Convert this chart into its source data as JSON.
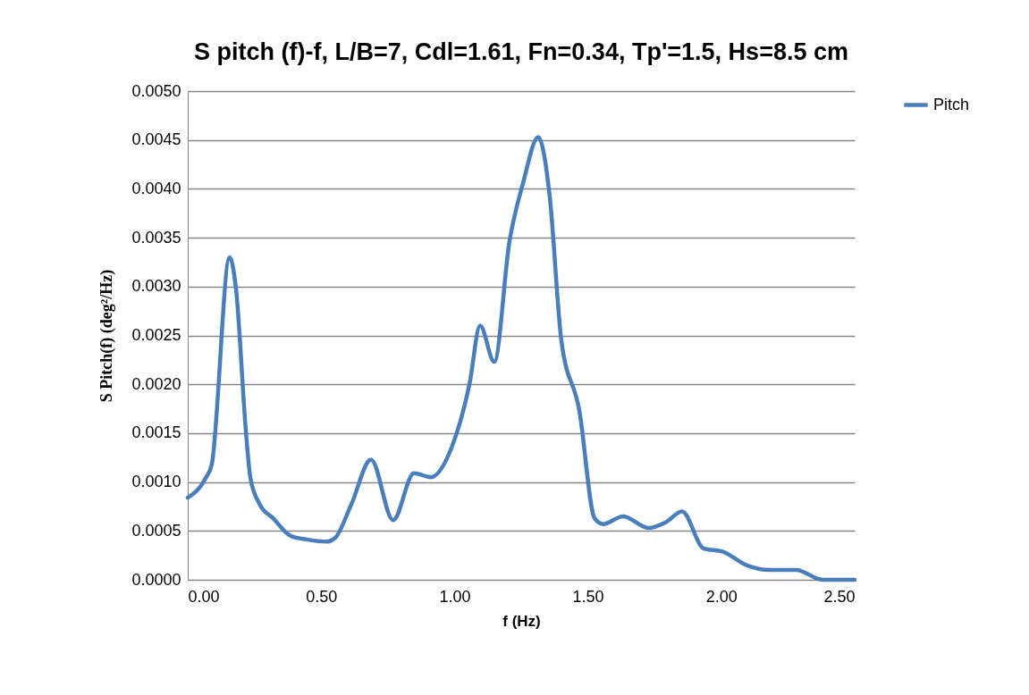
{
  "chart_data": {
    "type": "line",
    "title": "S pitch (f)-f, L/B=7, Cdl=1.61, Fn=0.34, Tp'=1.5, Hs=8.5 cm",
    "xlabel": "f (Hz)",
    "ylabel": "S Pitch(f)  (deg²/Hz)",
    "x": [
      0,
      0.067,
      0.09,
      0.157,
      0.18,
      0.22,
      0.235,
      0.27,
      0.32,
      0.385,
      0.45,
      0.52,
      0.553,
      0.613,
      0.687,
      0.77,
      0.848,
      0.911,
      0.99,
      1.056,
      1.096,
      1.149,
      1.206,
      1.257,
      1.314,
      1.357,
      1.4,
      1.468,
      1.525,
      1.558,
      1.632,
      1.726,
      1.793,
      1.853,
      1.934,
      2.004,
      2.094,
      2.18,
      2.28,
      2.38,
      2.5
    ],
    "series": [
      {
        "name": "Pitch",
        "color": "#4a7ebb",
        "values": [
          0.00084,
          0.00104,
          0.00118,
          0.0033,
          0.003,
          0.00145,
          0.00104,
          0.00077,
          0.00063,
          0.00045,
          0.00041,
          0.00039,
          0.00043,
          0.00077,
          0.00123,
          0.00061,
          0.00109,
          0.00105,
          0.00136,
          0.002,
          0.0026,
          0.00223,
          0.00346,
          0.00406,
          0.00453,
          0.00392,
          0.00246,
          0.00173,
          0.00063,
          0.00057,
          0.00065,
          0.00053,
          0.00059,
          0.0007,
          0.00032,
          0.00029,
          0.00015,
          0.0001,
          0.0001,
          0,
          0
        ]
      }
    ],
    "xlim": [
      0,
      2.5
    ],
    "xticks": [
      {
        "value": 0,
        "label": "0.00"
      },
      {
        "value": 0.5,
        "label": "0.50"
      },
      {
        "value": 1,
        "label": "1.00"
      },
      {
        "value": 1.5,
        "label": "1.50"
      },
      {
        "value": 2,
        "label": "2.00"
      },
      {
        "value": 2.5,
        "label": "2.50"
      }
    ],
    "ylim": [
      0,
      0.005
    ],
    "yticks": [
      {
        "value": 0,
        "label": "0.0000"
      },
      {
        "value": 0.0005,
        "label": "0.0005"
      },
      {
        "value": 0.001,
        "label": "0.0010"
      },
      {
        "value": 0.0015,
        "label": "0.0015"
      },
      {
        "value": 0.002,
        "label": "0.0020"
      },
      {
        "value": 0.0025,
        "label": "0.0025"
      },
      {
        "value": 0.003,
        "label": "0.0030"
      },
      {
        "value": 0.0035,
        "label": "0.0035"
      },
      {
        "value": 0.004,
        "label": "0.0040"
      },
      {
        "value": 0.0045,
        "label": "0.0045"
      },
      {
        "value": 0.005,
        "label": "0.0050"
      }
    ],
    "grid": "y",
    "legend": "right",
    "marker": "none",
    "line_style": "solid"
  }
}
